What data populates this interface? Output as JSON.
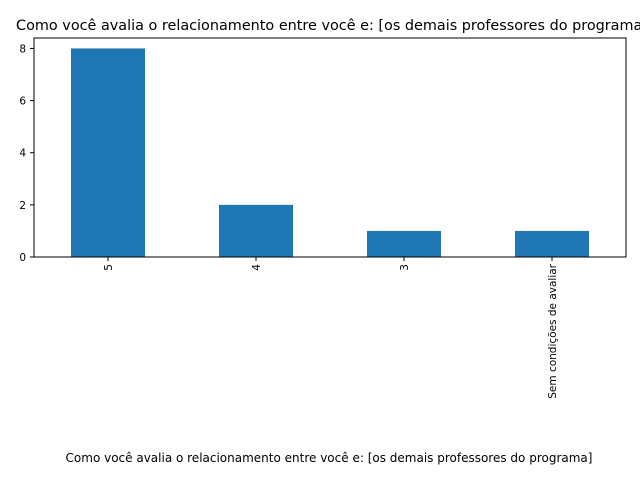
{
  "chart_data": {
    "type": "bar",
    "title": "Como você avalia o relacionamento entre você e: [os demais professores do programa]",
    "xlabel": "Como você avalia o relacionamento entre você e: [os demais professores do programa]",
    "ylabel": "",
    "categories": [
      "5",
      "4",
      "3",
      "Sem condições de avaliar"
    ],
    "values": [
      8,
      2,
      1,
      1
    ],
    "ylim": [
      0,
      8.4
    ],
    "yticks": [
      0,
      2,
      4,
      6,
      8
    ],
    "bar_color": "#1f77b4",
    "grid": false,
    "legend": "none"
  }
}
